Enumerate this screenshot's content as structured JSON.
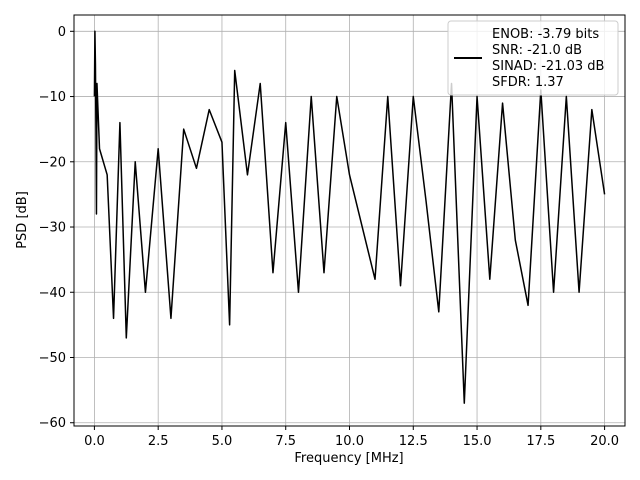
{
  "chart_data": {
    "type": "line",
    "title": "",
    "xlabel": "Frequency [MHz]",
    "ylabel": "PSD [dB]",
    "xlim": [
      -0.8,
      20.8
    ],
    "ylim": [
      -60.5,
      2.5
    ],
    "xticks": [
      0.0,
      2.5,
      5.0,
      7.5,
      10.0,
      12.5,
      15.0,
      17.5,
      20.0
    ],
    "xtick_labels": [
      "0.0",
      "2.5",
      "5.0",
      "7.5",
      "10.0",
      "12.5",
      "15.0",
      "17.5",
      "20.0"
    ],
    "yticks": [
      0,
      -10,
      -20,
      -30,
      -40,
      -50,
      -60
    ],
    "ytick_labels": [
      "0",
      "−10",
      "−20",
      "−30",
      "−40",
      "−50",
      "−60"
    ],
    "grid": true,
    "legend_position": "top-right",
    "legend_lines": [
      "ENOB: -3.79 bits",
      "SNR: -21.0 dB",
      "SINAD: -21.03 dB",
      "SFDR: 1.37"
    ],
    "series_color": "#000000",
    "series": [
      {
        "x": [
          0.0,
          0.02,
          0.04,
          0.06,
          0.08,
          0.1,
          0.2,
          0.5,
          0.75,
          1.0,
          1.25,
          1.6,
          2.0,
          2.5,
          3.0,
          3.5,
          4.0,
          4.5,
          5.0,
          5.3,
          5.5,
          6.0,
          6.5,
          7.0,
          7.5,
          8.0,
          8.5,
          9.0,
          9.5,
          10.0,
          10.5,
          11.0,
          11.5,
          12.0,
          12.5,
          13.0,
          13.5,
          14.0,
          14.5,
          15.0,
          15.5,
          16.0,
          16.5,
          17.0,
          17.5,
          18.0,
          18.5,
          19.0,
          19.5,
          20.0
        ],
        "y": [
          -10,
          0,
          -5,
          -15,
          -28,
          -8,
          -18,
          -22,
          -44,
          -14,
          -47,
          -20,
          -40,
          -18,
          -44,
          -15,
          -21,
          -12,
          -17,
          -45,
          -6,
          -22,
          -8,
          -37,
          -14,
          -40,
          -10,
          -37,
          -10,
          -22,
          -30,
          -38,
          -10,
          -39,
          -10,
          -26,
          -43,
          -8,
          -57,
          -10,
          -38,
          -11,
          -32,
          -42,
          -9,
          -40,
          -10,
          -40,
          -12,
          -25
        ]
      }
    ]
  }
}
